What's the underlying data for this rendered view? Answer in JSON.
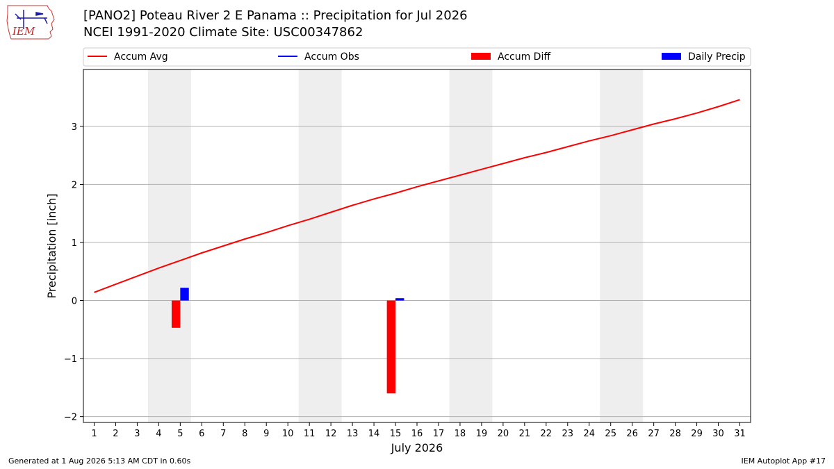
{
  "header": {
    "title_line1": "[PANO2] Poteau River 2 E Panama :: Precipitation for Jul 2026",
    "title_line2": "NCEI 1991-2020 Climate Site: USC00347862",
    "logo_text": "IEM"
  },
  "footer": {
    "generated": "Generated at 1 Aug 2026 5:13 AM CDT in 0.60s",
    "app": "IEM Autoplot App #17"
  },
  "colors": {
    "avg": "#ff0000",
    "obs": "#0000ff",
    "diff": "#ff0000",
    "daily": "#0000ff",
    "weekend_shade": "#eeeeee",
    "grid": "#b0b0b0"
  },
  "chart_data": {
    "type": "bar",
    "xlabel": "July 2026",
    "ylabel": "Precipitation [inch]",
    "xlim": [
      0.5,
      31.5
    ],
    "ylim": [
      -2.1,
      3.98
    ],
    "x_ticks": [
      1,
      2,
      3,
      4,
      5,
      6,
      7,
      8,
      9,
      10,
      11,
      12,
      13,
      14,
      15,
      16,
      17,
      18,
      19,
      20,
      21,
      22,
      23,
      24,
      25,
      26,
      27,
      28,
      29,
      30,
      31
    ],
    "y_ticks": [
      -2,
      -1,
      0,
      1,
      2,
      3
    ],
    "y_tick_labels": [
      "−2",
      "−1",
      "0",
      "1",
      "2",
      "3"
    ],
    "grid": "horizontal",
    "legend_placement": "top, outside plot",
    "legend": [
      "Accum Avg",
      "Accum Obs",
      "Accum Diff",
      "Daily Precip"
    ],
    "shaded_day_spans": [
      [
        4,
        5
      ],
      [
        11,
        12
      ],
      [
        18,
        19
      ],
      [
        25,
        26
      ]
    ],
    "accum_avg": {
      "x": [
        1,
        2,
        3,
        4,
        5,
        6,
        7,
        8,
        9,
        10,
        11,
        12,
        13,
        14,
        15,
        16,
        17,
        18,
        19,
        20,
        21,
        22,
        23,
        24,
        25,
        26,
        27,
        28,
        29,
        30,
        31
      ],
      "y": [
        0.14,
        0.28,
        0.42,
        0.56,
        0.69,
        0.82,
        0.94,
        1.06,
        1.17,
        1.29,
        1.4,
        1.52,
        1.64,
        1.75,
        1.85,
        1.96,
        2.06,
        2.16,
        2.26,
        2.36,
        2.46,
        2.55,
        2.65,
        2.75,
        2.84,
        2.94,
        3.04,
        3.13,
        3.23,
        3.34,
        3.46
      ]
    },
    "accum_obs": {
      "x": [],
      "y": []
    },
    "accum_diff": {
      "x": [
        5,
        15
      ],
      "y": [
        -0.47,
        -1.6
      ]
    },
    "daily_precip": {
      "x": [
        5,
        15
      ],
      "y": [
        0.22,
        0.04
      ]
    }
  }
}
